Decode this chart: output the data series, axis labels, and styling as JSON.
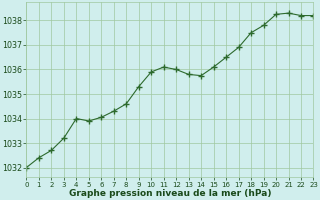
{
  "x": [
    0,
    1,
    2,
    3,
    4,
    5,
    6,
    7,
    8,
    9,
    10,
    11,
    12,
    13,
    14,
    15,
    16,
    17,
    18,
    19,
    20,
    21,
    22,
    23
  ],
  "y": [
    1032.0,
    1032.4,
    1032.7,
    1033.2,
    1034.0,
    1033.9,
    1034.05,
    1034.3,
    1034.6,
    1035.3,
    1035.9,
    1036.1,
    1036.0,
    1035.8,
    1035.75,
    1036.1,
    1036.5,
    1036.9,
    1037.5,
    1037.8,
    1038.25,
    1038.3,
    1038.2,
    1038.2
  ],
  "line_color": "#2d6a2d",
  "marker_color": "#2d6a2d",
  "bg_color": "#d0eeed",
  "grid_color": "#a0c8a0",
  "text_color": "#1a4a1a",
  "xlabel": "Graphe pression niveau de la mer (hPa)",
  "ylim": [
    1031.6,
    1038.75
  ],
  "yticks": [
    1032,
    1033,
    1034,
    1035,
    1036,
    1037,
    1038
  ],
  "xlim": [
    0,
    23
  ],
  "xticks": [
    0,
    1,
    2,
    3,
    4,
    5,
    6,
    7,
    8,
    9,
    10,
    11,
    12,
    13,
    14,
    15,
    16,
    17,
    18,
    19,
    20,
    21,
    22,
    23
  ],
  "title_fontsize": 6.0,
  "xlabel_fontsize": 6.5,
  "ytick_fontsize": 5.8,
  "xtick_fontsize": 5.0
}
